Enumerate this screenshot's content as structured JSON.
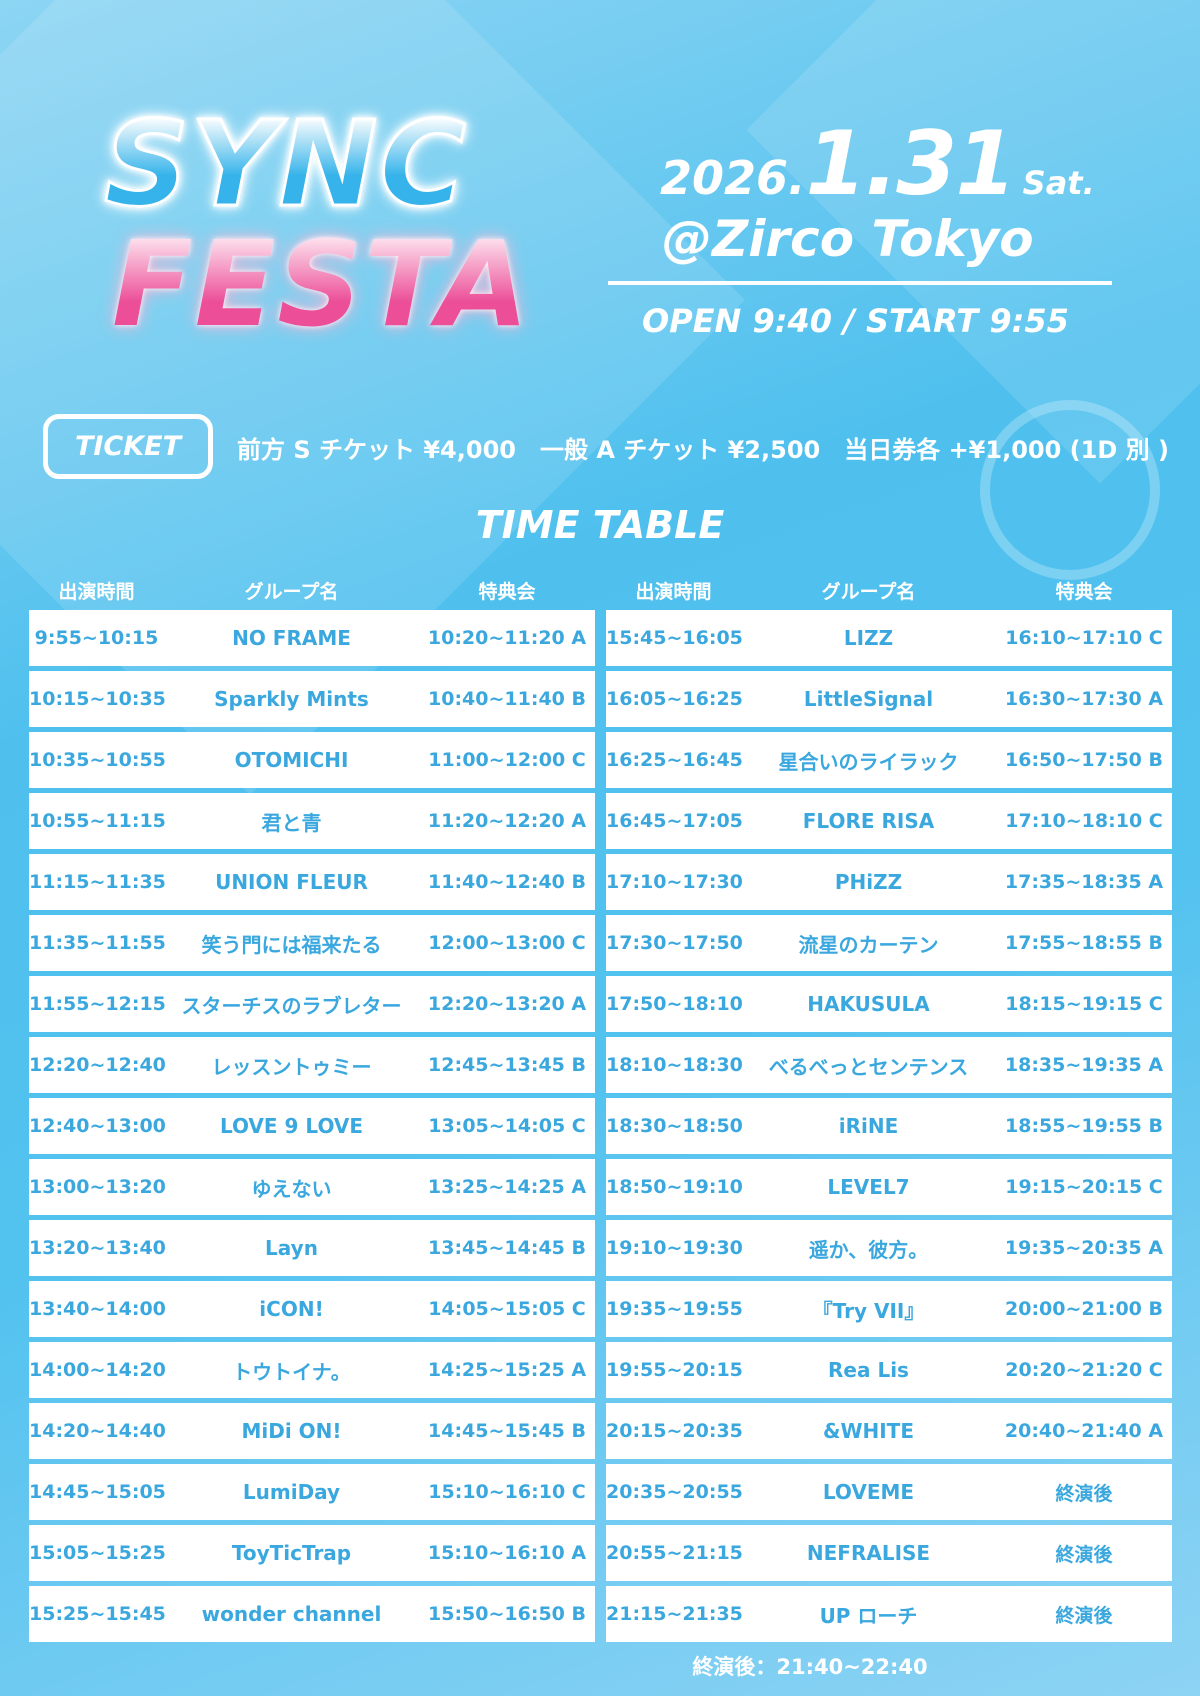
{
  "logo": {
    "line1": "SYNC",
    "line2": "FESTA"
  },
  "event": {
    "year": "2026.",
    "date": "1.31",
    "weekday": "Sat.",
    "venue": "@Zirco Tokyo",
    "open_start": "OPEN 9:40 / START 9:55"
  },
  "ticket": {
    "label": "TICKET",
    "info": "前方 S チケット ¥4,000　一般 A チケット ¥2,500　当日券各 +¥1,000 (1D 別 )"
  },
  "timetable": {
    "title": "TIME TABLE",
    "headers": [
      "出演時間",
      "グループ名",
      "特典会"
    ],
    "left": [
      [
        "9:55~10:15",
        "NO FRAME",
        "10:20~11:20 A"
      ],
      [
        "10:15~10:35",
        "Sparkly Mints",
        "10:40~11:40 B"
      ],
      [
        "10:35~10:55",
        "OTOMICHI",
        "11:00~12:00 C"
      ],
      [
        "10:55~11:15",
        "君と青",
        "11:20~12:20 A"
      ],
      [
        "11:15~11:35",
        "UNION FLEUR",
        "11:40~12:40 B"
      ],
      [
        "11:35~11:55",
        "笑う門には福来たる",
        "12:00~13:00 C"
      ],
      [
        "11:55~12:15",
        "スターチスのラブレター",
        "12:20~13:20 A"
      ],
      [
        "12:20~12:40",
        "レッスントゥミー",
        "12:45~13:45 B"
      ],
      [
        "12:40~13:00",
        "LOVE 9 LOVE",
        "13:05~14:05 C"
      ],
      [
        "13:00~13:20",
        "ゆえない",
        "13:25~14:25 A"
      ],
      [
        "13:20~13:40",
        "Layn",
        "13:45~14:45 B"
      ],
      [
        "13:40~14:00",
        "iCON!",
        "14:05~15:05 C"
      ],
      [
        "14:00~14:20",
        "トウトイナ。",
        "14:25~15:25 A"
      ],
      [
        "14:20~14:40",
        "MiDi ON!",
        "14:45~15:45 B"
      ],
      [
        "14:45~15:05",
        "LumiDay",
        "15:10~16:10 C"
      ],
      [
        "15:05~15:25",
        "ToyTicTrap",
        "15:10~16:10 A"
      ],
      [
        "15:25~15:45",
        "wonder channel",
        "15:50~16:50 B"
      ]
    ],
    "right": [
      [
        "15:45~16:05",
        "LIZZ",
        "16:10~17:10 C"
      ],
      [
        "16:05~16:25",
        "LittleSignal",
        "16:30~17:30 A"
      ],
      [
        "16:25~16:45",
        "星合いのライラック",
        "16:50~17:50 B"
      ],
      [
        "16:45~17:05",
        "FLORE RISA",
        "17:10~18:10 C"
      ],
      [
        "17:10~17:30",
        "PHiZZ",
        "17:35~18:35 A"
      ],
      [
        "17:30~17:50",
        "流星のカーテン",
        "17:55~18:55 B"
      ],
      [
        "17:50~18:10",
        "HAKUSULA",
        "18:15~19:15 C"
      ],
      [
        "18:10~18:30",
        "べるべっとセンテンス",
        "18:35~19:35 A"
      ],
      [
        "18:30~18:50",
        "iRiNE",
        "18:55~19:55 B"
      ],
      [
        "18:50~19:10",
        "LEVEL7",
        "19:15~20:15 C"
      ],
      [
        "19:10~19:30",
        "遥か、彼方。",
        "19:35~20:35 A"
      ],
      [
        "19:35~19:55",
        "『Try VII』",
        "20:00~21:00 B"
      ],
      [
        "19:55~20:15",
        "Rea Lis",
        "20:20~21:20 C"
      ],
      [
        "20:15~20:35",
        "&WHITE",
        "20:40~21:40 A"
      ],
      [
        "20:35~20:55",
        "LOVEME",
        "終演後"
      ],
      [
        "20:55~21:15",
        "NEFRALISE",
        "終演後"
      ],
      [
        "21:15~21:35",
        "UP ローチ",
        "終演後"
      ]
    ],
    "footer": "終演後：21:40~22:40"
  },
  "colors": {
    "background": "#52c2ef",
    "cell_text": "#3aa8de",
    "logo_blue": "#35b3ea",
    "logo_pink": "#ec4f98"
  }
}
